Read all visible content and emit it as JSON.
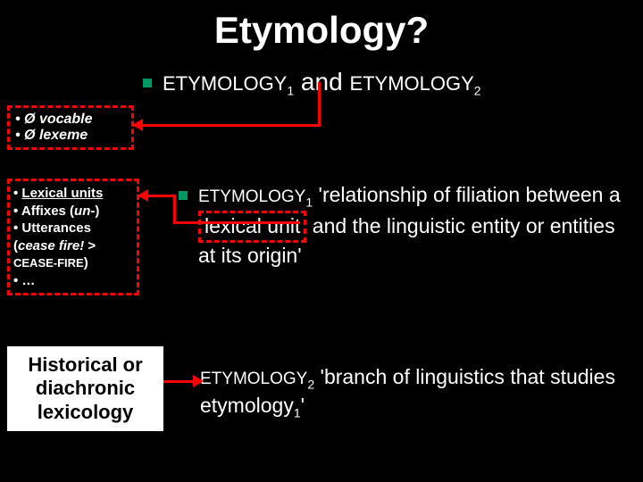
{
  "colors": {
    "background": "#000000",
    "text": "#ffffff",
    "accent_border": "#ff0000",
    "bullet": "#009966",
    "white_box_bg": "#ffffff",
    "white_box_text": "#000000"
  },
  "title": "Etymology?",
  "subtitle": {
    "part1": "ETYMOLOGY",
    "sub1": "1",
    "mid": " and ",
    "part2": "ETYMOLOGY",
    "sub2": "2"
  },
  "box1": {
    "line1": "• Ø vocable",
    "line2": "• Ø lexeme"
  },
  "box2": {
    "l1_bullet": "• ",
    "l1_text": "Lexical units",
    "l2": "• Affixes (",
    "l2_ital": "un-",
    "l2_end": ")",
    "l3": "• Utterances",
    "l4": "(",
    "l4_ital": "cease fire!",
    "l4_mid": " >",
    "l5_small": "CEASE-FIRE",
    "l5_end": ")",
    "l6": "• …"
  },
  "def1": {
    "label": "ETYMOLOGY",
    "labelsub": "1",
    "t1": " 'relationship of filiation between a ",
    "lex": "lexical unit",
    "t2": " and the linguistic entity or entities at its origin'"
  },
  "box3": {
    "l1": "Historical or",
    "l2": "diachronic",
    "l3": "lexicology"
  },
  "def2": {
    "label": "ETYMOLOGY",
    "labelsub": "2",
    "t1": " 'branch of linguistics that studies etymology",
    "sub": "1",
    "t2": "'"
  }
}
